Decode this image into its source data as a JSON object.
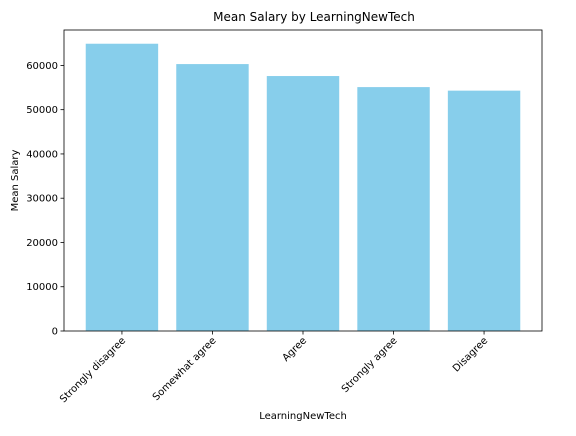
{
  "chart_data": {
    "type": "bar",
    "title": "Mean Salary by LearningNewTech",
    "xlabel": "LearningNewTech",
    "ylabel": "Mean Salary",
    "categories": [
      "Strongly disagree",
      "Somewhat agree",
      "Agree",
      "Strongly agree",
      "Disagree"
    ],
    "values": [
      64900,
      60300,
      57600,
      55100,
      54300
    ],
    "ylim": [
      0,
      68000
    ],
    "yticks": [
      0,
      10000,
      20000,
      30000,
      40000,
      50000,
      60000
    ],
    "ytick_labels": [
      "0",
      "10000",
      "20000",
      "30000",
      "40000",
      "50000",
      "60000"
    ],
    "grid": false,
    "bar_color": "#87ceeb",
    "x_tick_rotation": 45
  }
}
